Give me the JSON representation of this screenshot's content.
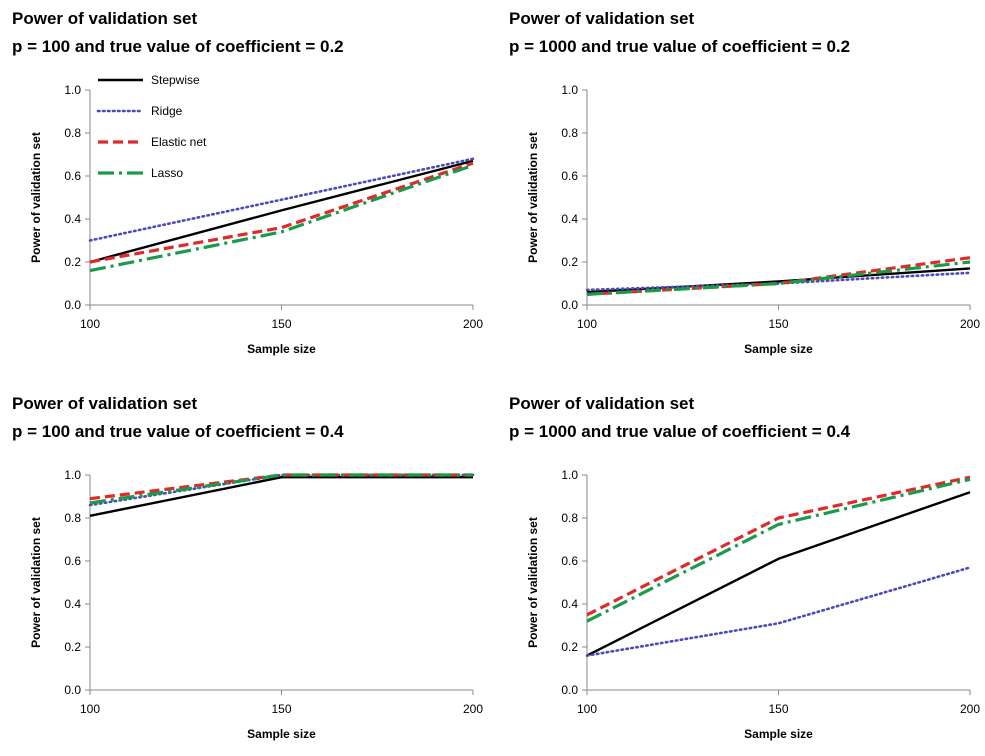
{
  "chart_data": [
    {
      "type": "line",
      "title": "Power of validation set",
      "subtitle": "p = 100 and true value of coefficient = 0.2",
      "xlabel": "Sample size",
      "ylabel": "Power of validation set",
      "x": [
        100,
        150,
        200
      ],
      "xticks": [
        "100",
        "150",
        "200"
      ],
      "yticks": [
        "0.0",
        "0.2",
        "0.4",
        "0.6",
        "0.8",
        "1.0"
      ],
      "xlim": [
        100,
        200
      ],
      "ylim": [
        0,
        1
      ],
      "grid": false,
      "legend": "top-left",
      "series": [
        {
          "name": "Stepwise",
          "values": [
            0.2,
            0.44,
            0.67
          ]
        },
        {
          "name": "Ridge",
          "values": [
            0.3,
            0.49,
            0.68
          ]
        },
        {
          "name": "Elastic net",
          "values": [
            0.2,
            0.36,
            0.66
          ]
        },
        {
          "name": "Lasso",
          "values": [
            0.16,
            0.34,
            0.65
          ]
        }
      ]
    },
    {
      "type": "line",
      "title": "Power of validation set",
      "subtitle": "p = 1000 and true value of coefficient = 0.2",
      "xlabel": "Sample size",
      "ylabel": "Power of validation set",
      "x": [
        100,
        150,
        200
      ],
      "xticks": [
        "100",
        "150",
        "200"
      ],
      "yticks": [
        "0.0",
        "0.2",
        "0.4",
        "0.6",
        "0.8",
        "1.0"
      ],
      "xlim": [
        100,
        200
      ],
      "ylim": [
        0,
        1
      ],
      "grid": false,
      "legend": "none",
      "series": [
        {
          "name": "Stepwise",
          "values": [
            0.06,
            0.11,
            0.17
          ]
        },
        {
          "name": "Ridge",
          "values": [
            0.07,
            0.1,
            0.15
          ]
        },
        {
          "name": "Elastic net",
          "values": [
            0.05,
            0.1,
            0.22
          ]
        },
        {
          "name": "Lasso",
          "values": [
            0.05,
            0.1,
            0.2
          ]
        }
      ]
    },
    {
      "type": "line",
      "title": "Power of validation set",
      "subtitle": "p = 100 and true value of coefficient = 0.4",
      "xlabel": "Sample size",
      "ylabel": "Power of validation set",
      "x": [
        100,
        150,
        200
      ],
      "xticks": [
        "100",
        "150",
        "200"
      ],
      "yticks": [
        "0.0",
        "0.2",
        "0.4",
        "0.6",
        "0.8",
        "1.0"
      ],
      "xlim": [
        100,
        200
      ],
      "ylim": [
        0,
        1
      ],
      "grid": false,
      "legend": "none",
      "series": [
        {
          "name": "Stepwise",
          "values": [
            0.81,
            0.99,
            0.99
          ]
        },
        {
          "name": "Ridge",
          "values": [
            0.86,
            1.0,
            1.0
          ]
        },
        {
          "name": "Elastic net",
          "values": [
            0.89,
            1.0,
            1.0
          ]
        },
        {
          "name": "Lasso",
          "values": [
            0.87,
            1.0,
            1.0
          ]
        }
      ]
    },
    {
      "type": "line",
      "title": "Power of validation set",
      "subtitle": "p = 1000 and true value of coefficient = 0.4",
      "xlabel": "Sample size",
      "ylabel": "Power of validation set",
      "x": [
        100,
        150,
        200
      ],
      "xticks": [
        "100",
        "150",
        "200"
      ],
      "yticks": [
        "0.0",
        "0.2",
        "0.4",
        "0.6",
        "0.8",
        "1.0"
      ],
      "xlim": [
        100,
        200
      ],
      "ylim": [
        0,
        1
      ],
      "grid": false,
      "legend": "none",
      "series": [
        {
          "name": "Stepwise",
          "values": [
            0.16,
            0.61,
            0.92
          ]
        },
        {
          "name": "Ridge",
          "values": [
            0.16,
            0.31,
            0.57
          ]
        },
        {
          "name": "Elastic net",
          "values": [
            0.35,
            0.8,
            0.99
          ]
        },
        {
          "name": "Lasso",
          "values": [
            0.32,
            0.77,
            0.98
          ]
        }
      ]
    }
  ],
  "series_styles": {
    "Stepwise": {
      "color": "#000000",
      "dash": "solid"
    },
    "Ridge": {
      "color": "#4a4ab8",
      "dash": "dotted"
    },
    "Elastic net": {
      "color": "#e02a2a",
      "dash": "dashed"
    },
    "Lasso": {
      "color": "#1a9a4a",
      "dash": "long-dash-dot"
    }
  }
}
